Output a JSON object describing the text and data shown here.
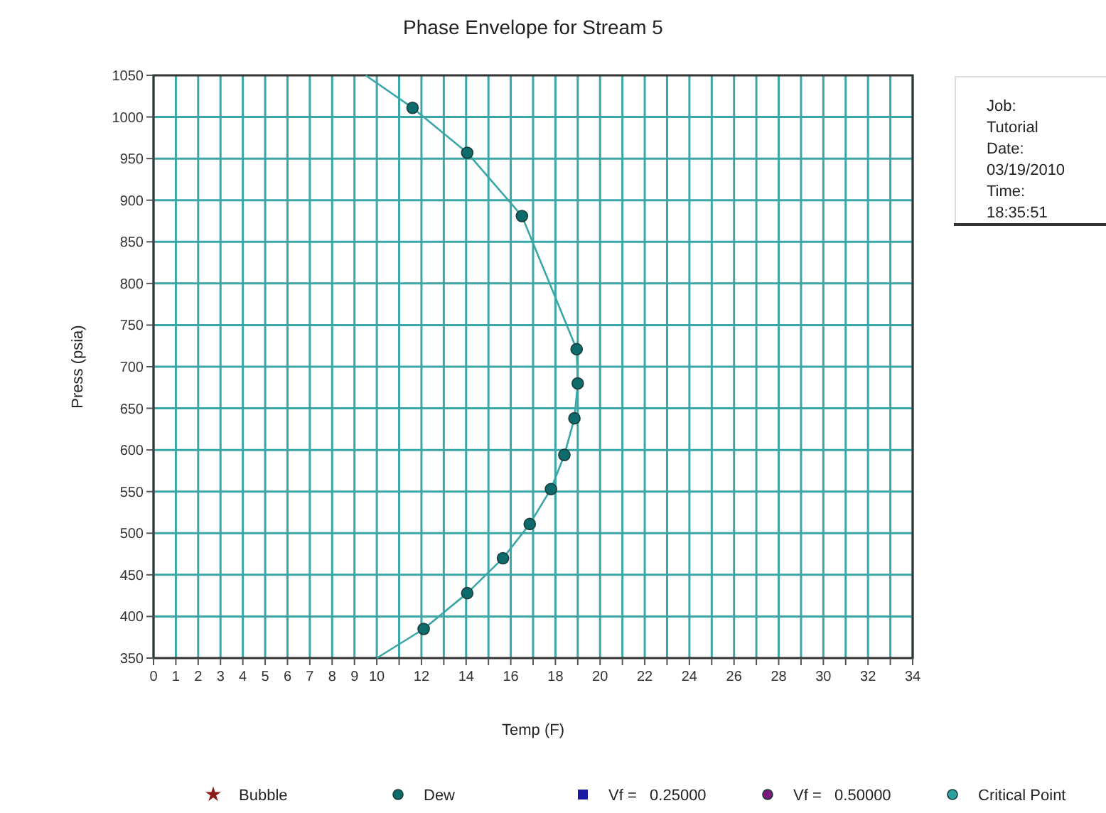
{
  "chart_data": {
    "type": "scatter",
    "title": "Phase Envelope for Stream 5",
    "xlabel": "Temp (F)",
    "ylabel": "Press (psia)",
    "xlim": [
      0,
      34
    ],
    "ylim": [
      350,
      1050
    ],
    "xticks": [
      0,
      1,
      2,
      3,
      4,
      5,
      6,
      7,
      8,
      9,
      10,
      {
        "value": 11,
        "label": null
      },
      12,
      {
        "value": 13,
        "label": null
      },
      14,
      {
        "value": 15,
        "label": null
      },
      16,
      {
        "value": 17,
        "label": null
      },
      18,
      {
        "value": 19,
        "label": null
      },
      20,
      {
        "value": 21,
        "label": null
      },
      22,
      {
        "value": 23,
        "label": null
      },
      24,
      {
        "value": 25,
        "label": null
      },
      26,
      {
        "value": 27,
        "label": null
      },
      28,
      {
        "value": 29,
        "label": null
      },
      30,
      {
        "value": 31,
        "label": null
      },
      32,
      {
        "value": 33,
        "label": null
      },
      34
    ],
    "yticks": [
      350,
      400,
      450,
      500,
      550,
      600,
      650,
      700,
      750,
      800,
      850,
      900,
      950,
      1000,
      1050
    ],
    "grid": true,
    "legend": "bottom",
    "series": [
      {
        "name": "Bubble",
        "marker": "star",
        "color": "#8b1a1a"
      },
      {
        "name": "Dew",
        "marker": "circle",
        "color": "#0e6b6b",
        "x": [
          11.6,
          14.05,
          16.5,
          18.95,
          19.0,
          18.85,
          18.4,
          17.8,
          16.85,
          15.65,
          14.05,
          12.1
        ],
        "values": [
          1011,
          957,
          881,
          721,
          680,
          638,
          594,
          553,
          511,
          470,
          428,
          385
        ]
      },
      {
        "name": "Vf =   0.25000",
        "marker": "square",
        "color": "#1a1aa0"
      },
      {
        "name": "Vf =   0.50000",
        "marker": "circle",
        "color": "#7a1a7a"
      },
      {
        "name": "Critical Point",
        "marker": "circle",
        "color": "#2aa0a0"
      },
      {
        "type": "line",
        "marker": "none",
        "line_style": "solid",
        "color": "#3aa6a6",
        "x": [
          9.5,
          11.6,
          14.05,
          16.5,
          18.95,
          19.0,
          18.85,
          18.4,
          17.8,
          16.85,
          15.65,
          14.05,
          12.1,
          10
        ],
        "values": [
          1050,
          1011,
          957,
          881,
          721,
          680,
          638,
          594,
          553,
          511,
          470,
          428,
          385,
          350
        ]
      }
    ],
    "annotations": [
      "Job:",
      "Tutorial",
      "Date:",
      "03/19/2010",
      "Time:",
      "18:35:51"
    ]
  }
}
